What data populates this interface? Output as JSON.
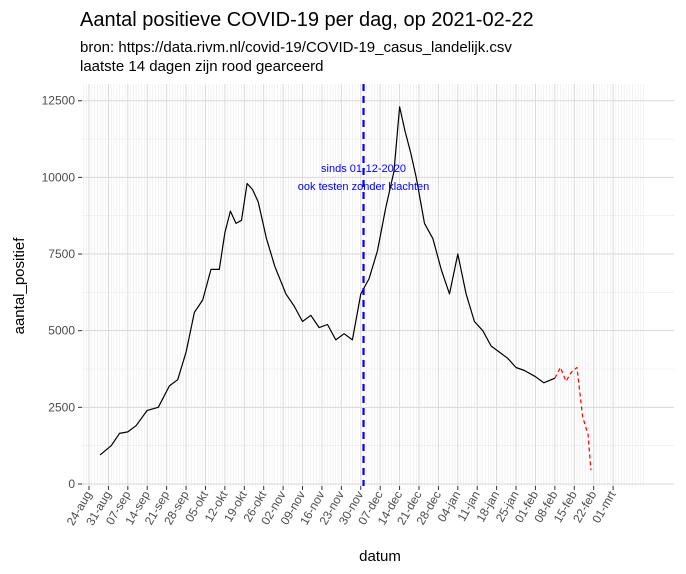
{
  "title": "Aantal positieve COVID-19 per dag, op 2021-02-22",
  "subtitle_lines": [
    "bron: https://data.rivm.nl/covid-19/COVID-19_casus_landelijk.csv",
    "laatste 14 dagen zijn rood gearceerd"
  ],
  "chart_data": {
    "type": "line",
    "title": "Aantal positieve COVID-19 per dag, op 2021-02-22",
    "xlabel": "datum",
    "ylabel": "aantal_positief",
    "ylim": [
      0,
      12500
    ],
    "y_ticks": [
      0,
      2500,
      5000,
      7500,
      10000,
      12500
    ],
    "x_tick_labels": [
      "24-aug",
      "31-aug",
      "07-sep",
      "14-sep",
      "21-sep",
      "28-sep",
      "05-okt",
      "12-okt",
      "19-okt",
      "26-okt",
      "02-nov",
      "09-nov",
      "16-nov",
      "23-nov",
      "30-nov",
      "07-dec",
      "14-dec",
      "21-dec",
      "28-dec",
      "04-jan",
      "11-jan",
      "18-jan",
      "25-jan",
      "01-feb",
      "08-feb",
      "15-feb",
      "22-feb",
      "01-mrt"
    ],
    "grid": true,
    "x_start": "2020-08-24",
    "vline": {
      "x": "2020-12-01",
      "color": "#0000ff",
      "style": "dashed"
    },
    "annotation": [
      "sinds 01-12-2020",
      "ook testen zonder klachten"
    ],
    "series": [
      {
        "color": "#000000",
        "style": "solid",
        "x": [
          "2020-08-28",
          "2020-09-01",
          "2020-09-04",
          "2020-09-07",
          "2020-09-10",
          "2020-09-14",
          "2020-09-18",
          "2020-09-22",
          "2020-09-25",
          "2020-09-28",
          "2020-10-01",
          "2020-10-04",
          "2020-10-07",
          "2020-10-10",
          "2020-10-12",
          "2020-10-14",
          "2020-10-16",
          "2020-10-18",
          "2020-10-20",
          "2020-10-22",
          "2020-10-24",
          "2020-10-27",
          "2020-10-30",
          "2020-11-03",
          "2020-11-06",
          "2020-11-09",
          "2020-11-12",
          "2020-11-15",
          "2020-11-18",
          "2020-11-21",
          "2020-11-24",
          "2020-11-27",
          "2020-11-30",
          "2020-12-03",
          "2020-12-06",
          "2020-12-09",
          "2020-12-12",
          "2020-12-14",
          "2020-12-16",
          "2020-12-18",
          "2020-12-20",
          "2020-12-23",
          "2020-12-26",
          "2020-12-29",
          "2021-01-01",
          "2021-01-04",
          "2021-01-07",
          "2021-01-10",
          "2021-01-13",
          "2021-01-16",
          "2021-01-19",
          "2021-01-22",
          "2021-01-25",
          "2021-01-28",
          "2021-02-01",
          "2021-02-04",
          "2021-02-08"
        ],
        "values": [
          950,
          1250,
          1650,
          1700,
          1900,
          2400,
          2500,
          3200,
          3400,
          4300,
          5600,
          6000,
          7000,
          7000,
          8200,
          8900,
          8500,
          8600,
          9800,
          9600,
          9200,
          8000,
          7100,
          6200,
          5800,
          5300,
          5500,
          5100,
          5200,
          4700,
          4900,
          4700,
          6200,
          6700,
          7600,
          9000,
          10200,
          12300,
          11500,
          10800,
          10000,
          8500,
          8000,
          7000,
          6200,
          7500,
          6200,
          5300,
          5000,
          4500,
          4300,
          4100,
          3800,
          3700,
          3500,
          3300,
          3450
        ]
      },
      {
        "color": "#ff0000",
        "style": "dashed",
        "x": [
          "2021-02-08",
          "2021-02-10",
          "2021-02-12",
          "2021-02-14",
          "2021-02-16",
          "2021-02-18",
          "2021-02-20",
          "2021-02-21"
        ],
        "values": [
          3450,
          3800,
          3350,
          3650,
          3800,
          2200,
          1600,
          450
        ]
      }
    ]
  }
}
